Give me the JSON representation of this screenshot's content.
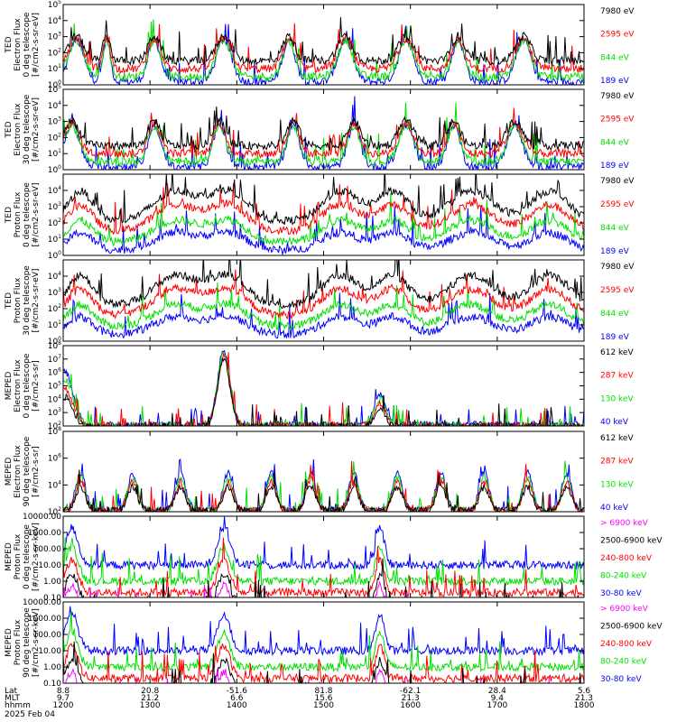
{
  "colors": {
    "black": "#000000",
    "red": "#ff0000",
    "green": "#00e000",
    "blue": "#0000ff",
    "magenta": "#ff00ff",
    "background": "#ffffff"
  },
  "chart_data": [
    {
      "type": "line",
      "ylabel": [
        "TED",
        "Electron Flux",
        "0 deg telescope",
        "[#/cm2-s-sr-eV]"
      ],
      "yscale": "log",
      "yticks": [
        "10^0",
        "10^1",
        "10^2",
        "10^3",
        "10^4",
        "10^5"
      ],
      "ylim": [
        1,
        100000
      ],
      "legend": [
        {
          "label": "7980 eV",
          "color": "black"
        },
        {
          "label": "2595 eV",
          "color": "red"
        },
        {
          "label": "844 eV",
          "color": "green"
        },
        {
          "label": "189 eV",
          "color": "blue"
        }
      ]
    },
    {
      "type": "line",
      "ylabel": [
        "TED",
        "Electron Flux",
        "30 deg telescope",
        "[#/cm2-s-sr-eV]"
      ],
      "yscale": "log",
      "yticks": [
        "10^0",
        "10^1",
        "10^2",
        "10^3",
        "10^4",
        "10^5"
      ],
      "ylim": [
        1,
        100000
      ],
      "legend": [
        {
          "label": "7980 eV",
          "color": "black"
        },
        {
          "label": "2595 eV",
          "color": "red"
        },
        {
          "label": "844 eV",
          "color": "green"
        },
        {
          "label": "189 eV",
          "color": "blue"
        }
      ]
    },
    {
      "type": "line",
      "ylabel": [
        "TED",
        "Proton Flux",
        "0 deg telescope",
        "[#/cm2-s-sr-eV]"
      ],
      "yscale": "log",
      "yticks": [
        "10^0",
        "10^1",
        "10^2",
        "10^3",
        "10^4"
      ],
      "ylim": [
        1,
        100000
      ],
      "legend": [
        {
          "label": "7980 eV",
          "color": "black"
        },
        {
          "label": "2595 eV",
          "color": "red"
        },
        {
          "label": "844 eV",
          "color": "green"
        },
        {
          "label": "189 eV",
          "color": "blue"
        }
      ]
    },
    {
      "type": "line",
      "ylabel": [
        "TED",
        "Proton Flux",
        "30 deg telescope",
        "[#/cm2-s-sr-eV]"
      ],
      "yscale": "log",
      "yticks": [
        "10^0",
        "10^1",
        "10^2",
        "10^3",
        "10^4"
      ],
      "ylim": [
        1,
        100000
      ],
      "legend": [
        {
          "label": "7980 eV",
          "color": "black"
        },
        {
          "label": "2595 eV",
          "color": "red"
        },
        {
          "label": "844 eV",
          "color": "green"
        },
        {
          "label": "189 eV",
          "color": "blue"
        }
      ]
    },
    {
      "type": "line",
      "ylabel": [
        "MEPED",
        "Electron Flux",
        "0 deg telescope",
        "[#/cm2-s-sr]"
      ],
      "yscale": "log",
      "yticks": [
        "10^2",
        "10^3",
        "10^4",
        "10^5",
        "10^6",
        "10^7",
        "10^8"
      ],
      "ylim": [
        100,
        100000000
      ],
      "legend": [
        {
          "label": "612 keV",
          "color": "black"
        },
        {
          "label": "287 keV",
          "color": "red"
        },
        {
          "label": "130 keV",
          "color": "green"
        },
        {
          "label": "40 keV",
          "color": "blue"
        }
      ]
    },
    {
      "type": "line",
      "ylabel": [
        "MEPED",
        "Electron Flux",
        "90 deg telescope",
        "[#/cm2-s-sr]"
      ],
      "yscale": "log",
      "yticks": [
        "10^2",
        "10^4",
        "10^6",
        "10^8"
      ],
      "ylim": [
        100,
        100000000
      ],
      "legend": [
        {
          "label": "612 keV",
          "color": "black"
        },
        {
          "label": "287 keV",
          "color": "red"
        },
        {
          "label": "130 keV",
          "color": "green"
        },
        {
          "label": "40 keV",
          "color": "blue"
        }
      ]
    },
    {
      "type": "line",
      "ylabel": [
        "MEPED",
        "Proton Flux",
        "0 deg telescope",
        "[#/cm2-s-sr-keV]"
      ],
      "yscale": "log",
      "yticks": [
        "0.10",
        "1.00",
        "10.00",
        "100.00",
        "1000.00",
        "10000.00"
      ],
      "ylim": [
        0.1,
        10000
      ],
      "legend": [
        {
          "label": "> 6900 keV",
          "color": "magenta"
        },
        {
          "label": "2500-6900 keV",
          "color": "black"
        },
        {
          "label": "240-800 keV",
          "color": "red"
        },
        {
          "label": "80-240 keV",
          "color": "green"
        },
        {
          "label": "30-80 keV",
          "color": "blue"
        }
      ]
    },
    {
      "type": "line",
      "ylabel": [
        "MEPED",
        "Proton Flux",
        "90 deg telescope",
        "[#/cm2-s-sr-keV]"
      ],
      "yscale": "log",
      "yticks": [
        "0.10",
        "1.00",
        "10.00",
        "100.00",
        "1000.00",
        "10000.00"
      ],
      "ylim": [
        0.1,
        10000
      ],
      "legend": [
        {
          "label": "> 6900 keV",
          "color": "magenta"
        },
        {
          "label": "2500-6900 keV",
          "color": "black"
        },
        {
          "label": "240-800 keV",
          "color": "red"
        },
        {
          "label": "80-240 keV",
          "color": "green"
        },
        {
          "label": "30-80 keV",
          "color": "blue"
        }
      ]
    }
  ],
  "x_axis": {
    "row_labels": [
      "Lat",
      "MLT",
      "hhmm"
    ],
    "xlim_hours": [
      12.0,
      18.0
    ],
    "ticks": [
      {
        "hour": 12.0,
        "lat": "8.8",
        "mlt": "9.7",
        "hhmm": "1200"
      },
      {
        "hour": 13.0,
        "lat": "20.8",
        "mlt": "21.2",
        "hhmm": "1300"
      },
      {
        "hour": 14.0,
        "lat": "-51.6",
        "mlt": "6.6",
        "hhmm": "1400"
      },
      {
        "hour": 15.0,
        "lat": "81.8",
        "mlt": "15.6",
        "hhmm": "1500"
      },
      {
        "hour": 16.0,
        "lat": "-62.1",
        "mlt": "21.3",
        "hhmm": "1600"
      },
      {
        "hour": 17.0,
        "lat": "28.4",
        "mlt": "9.4",
        "hhmm": "1700"
      },
      {
        "hour": 18.0,
        "lat": "5.6",
        "mlt": "21.3",
        "hhmm": "1800"
      }
    ],
    "date": "2025 Feb 04"
  }
}
